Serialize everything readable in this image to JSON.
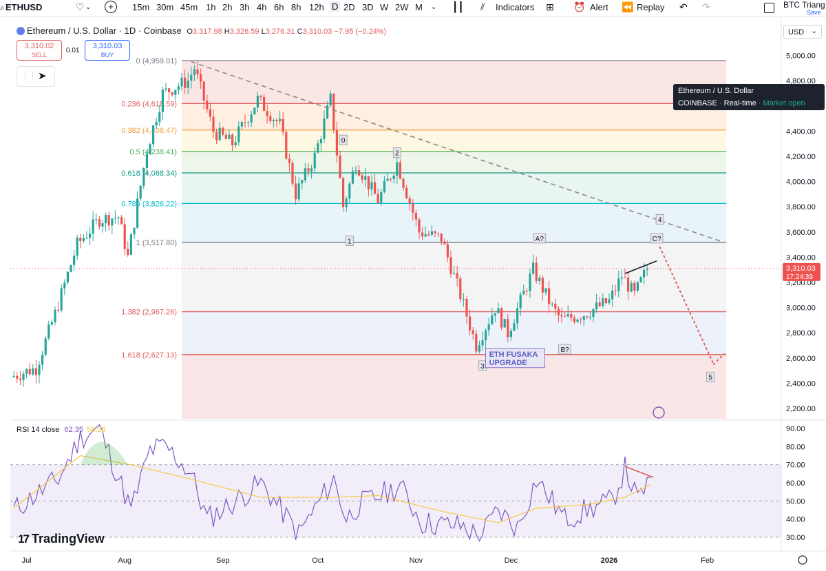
{
  "toolbar": {
    "symbol": "ETHUSD",
    "intervals": [
      "15m",
      "30m",
      "45m",
      "1h",
      "2h",
      "3h",
      "4h",
      "6h",
      "8h",
      "12h",
      "D",
      "2D",
      "3D",
      "W",
      "2W",
      "M"
    ],
    "selected_interval": "D",
    "indicators_label": "Indicators",
    "alert_label": "Alert",
    "replay_label": "Replay",
    "layout_name": "BTC Triang",
    "layout_save": "Save"
  },
  "legend": {
    "title": "Ethereum / U.S. Dollar · 1D · Coinbase",
    "o_label": "O",
    "o": "3,317.98",
    "h_label": "H",
    "h": "3,326.59",
    "l_label": "L",
    "l": "3,276.31",
    "c_label": "C",
    "c": "3,310.03",
    "change": "−7.95 (−0.24%)"
  },
  "trade": {
    "sell_price": "3,310.02",
    "sell_label": "SELL",
    "spread": "0.01",
    "buy_price": "3,310.03",
    "buy_label": "BUY"
  },
  "currency": "USD",
  "tooltip": {
    "line1": "Ethereum / U.S. Dollar",
    "exchange": "COINBASE",
    "feed": "Real-time",
    "status": "Market open"
  },
  "price_tag": {
    "price": "3,310.03",
    "countdown": "17:24:39"
  },
  "rsi_legend": {
    "label": "RSI 14 close",
    "rsi": "62.35",
    "ma": "58.88"
  },
  "brand": "TradingView",
  "chart_data": {
    "type": "candlestick",
    "symbol": "ETHUSD",
    "interval": "1D",
    "y_axis": {
      "min": 2100,
      "max": 5100,
      "ticks": [
        "5,000.00",
        "4,800.00",
        "4,600.00",
        "4,400.00",
        "4,200.00",
        "4,000.00",
        "3,800.00",
        "3,600.00",
        "3,400.00",
        "3,200.00",
        "3,000.00",
        "2,800.00",
        "2,600.00",
        "2,400.00",
        "2,200.00"
      ]
    },
    "x_axis": {
      "ticks": [
        "Jul",
        "Aug",
        "Sep",
        "Oct",
        "Nov",
        "Dec",
        "2026",
        "Feb"
      ]
    },
    "ohlc_samples": [
      {
        "date": "2025-06-27",
        "c": 2450
      },
      {
        "date": "2025-07-05",
        "c": 2520
      },
      {
        "date": "2025-07-11",
        "c": 2950
      },
      {
        "date": "2025-07-18",
        "c": 3500
      },
      {
        "date": "2025-07-25",
        "c": 3700
      },
      {
        "date": "2025-07-31",
        "c": 3720
      },
      {
        "date": "2025-08-03",
        "c": 3400
      },
      {
        "date": "2025-08-09",
        "c": 4250
      },
      {
        "date": "2025-08-14",
        "c": 4700
      },
      {
        "date": "2025-08-22",
        "c": 4800
      },
      {
        "date": "2025-08-24",
        "c": 4900
      },
      {
        "date": "2025-08-30",
        "c": 4400
      },
      {
        "date": "2025-09-05",
        "c": 4300
      },
      {
        "date": "2025-09-13",
        "c": 4650
      },
      {
        "date": "2025-09-20",
        "c": 4450
      },
      {
        "date": "2025-09-25",
        "c": 3900
      },
      {
        "date": "2025-10-01",
        "c": 4200
      },
      {
        "date": "2025-10-06",
        "c": 4650
      },
      {
        "date": "2025-10-10",
        "c": 3800
      },
      {
        "date": "2025-10-14",
        "c": 4150
      },
      {
        "date": "2025-10-21",
        "c": 3850
      },
      {
        "date": "2025-10-27",
        "c": 4150
      },
      {
        "date": "2025-11-03",
        "c": 3600
      },
      {
        "date": "2025-11-10",
        "c": 3550
      },
      {
        "date": "2025-11-16",
        "c": 3100
      },
      {
        "date": "2025-11-21",
        "c": 2700
      },
      {
        "date": "2025-11-27",
        "c": 3000
      },
      {
        "date": "2025-12-01",
        "c": 2800
      },
      {
        "date": "2025-12-09",
        "c": 3300
      },
      {
        "date": "2025-12-15",
        "c": 3000
      },
      {
        "date": "2025-12-18",
        "c": 2900
      },
      {
        "date": "2025-12-25",
        "c": 2950
      },
      {
        "date": "2026-01-02",
        "c": 3050
      },
      {
        "date": "2026-01-06",
        "c": 3250
      },
      {
        "date": "2026-01-10",
        "c": 3100
      },
      {
        "date": "2026-01-14",
        "c": 3310
      }
    ],
    "fibonacci": [
      {
        "ratio": "0",
        "price": 4959.01,
        "label": "0 (4,959.01)"
      },
      {
        "ratio": "0.236",
        "price": 4618.59,
        "label": "0.236 (4,618.59)"
      },
      {
        "ratio": "0.382",
        "price": 4408.47,
        "label": "0.382 (4,408.47)"
      },
      {
        "ratio": "0.5",
        "price": 4238.41,
        "label": "0.5 (4,238.41)"
      },
      {
        "ratio": "0.618",
        "price": 4068.34,
        "label": "0.618 (4,068.34)"
      },
      {
        "ratio": "0.786",
        "price": 3826.22,
        "label": "0.786 (3,826.22)"
      },
      {
        "ratio": "1",
        "price": 3517.8,
        "label": "1 (3,517.80)"
      },
      {
        "ratio": "1.382",
        "price": 2967.26,
        "label": "1.382 (2,967.26)"
      },
      {
        "ratio": "1.618",
        "price": 2627.13,
        "label": "1.618 (2,627.13)"
      }
    ],
    "wave_labels": [
      {
        "label": "0",
        "date": "2025-10-09",
        "price": 4330
      },
      {
        "label": "1",
        "date": "2025-10-11",
        "price": 3530
      },
      {
        "label": "2",
        "date": "2025-10-26",
        "price": 4230
      },
      {
        "label": "3",
        "date": "2025-11-22",
        "price": 2540
      },
      {
        "label": "A?",
        "date": "2025-12-10",
        "price": 3550
      },
      {
        "label": "B?",
        "date": "2025-12-18",
        "price": 2670
      },
      {
        "label": "C?",
        "date": "2026-01-16",
        "price": 3550
      },
      {
        "label": "4",
        "date": "2026-01-17",
        "price": 3700
      },
      {
        "label": "5",
        "date": "2026-02-02",
        "price": 2450
      }
    ],
    "annotations": [
      {
        "text_lines": [
          "ETH FUSAKA",
          "UPGRADE"
        ],
        "date": "2025-12-03",
        "price": 2600
      }
    ],
    "trendline": {
      "from": {
        "date": "2025-08-22",
        "price": 4950
      },
      "to": {
        "date": "2026-02-06",
        "price": 3520
      },
      "style": "dashed"
    },
    "projection": {
      "from": {
        "date": "2026-01-17",
        "price": 3480
      },
      "to": {
        "date": "2026-02-03",
        "price": 2550
      },
      "style": "dotted"
    },
    "rsi": {
      "period": 14,
      "y_ticks": [
        "90.00",
        "80.00",
        "70.00",
        "60.00",
        "50.00",
        "40.00",
        "30.00"
      ],
      "overbought": 70,
      "oversold": 30,
      "samples": [
        {
          "date": "2025-06-27",
          "v": 45
        },
        {
          "date": "2025-07-11",
          "v": 62
        },
        {
          "date": "2025-07-18",
          "v": 85
        },
        {
          "date": "2025-07-24",
          "v": 90
        },
        {
          "date": "2025-08-03",
          "v": 45
        },
        {
          "date": "2025-08-09",
          "v": 78
        },
        {
          "date": "2025-08-14",
          "v": 80
        },
        {
          "date": "2025-08-22",
          "v": 65
        },
        {
          "date": "2025-08-27",
          "v": 40
        },
        {
          "date": "2025-09-05",
          "v": 50
        },
        {
          "date": "2025-09-13",
          "v": 60
        },
        {
          "date": "2025-09-25",
          "v": 32
        },
        {
          "date": "2025-10-06",
          "v": 62
        },
        {
          "date": "2025-10-10",
          "v": 40
        },
        {
          "date": "2025-10-14",
          "v": 48
        },
        {
          "date": "2025-10-27",
          "v": 58
        },
        {
          "date": "2025-11-03",
          "v": 38
        },
        {
          "date": "2025-11-16",
          "v": 36
        },
        {
          "date": "2025-11-21",
          "v": 30
        },
        {
          "date": "2025-11-27",
          "v": 45
        },
        {
          "date": "2025-12-03",
          "v": 35
        },
        {
          "date": "2025-12-09",
          "v": 62
        },
        {
          "date": "2025-12-18",
          "v": 40
        },
        {
          "date": "2025-12-25",
          "v": 45
        },
        {
          "date": "2026-01-02",
          "v": 50
        },
        {
          "date": "2026-01-06",
          "v": 68
        },
        {
          "date": "2026-01-10",
          "v": 50
        },
        {
          "date": "2026-01-14",
          "v": 63
        }
      ],
      "ma_samples": [
        {
          "date": "2025-06-27",
          "v": 46
        },
        {
          "date": "2025-07-18",
          "v": 75
        },
        {
          "date": "2025-08-03",
          "v": 70
        },
        {
          "date": "2025-08-22",
          "v": 62
        },
        {
          "date": "2025-09-13",
          "v": 52
        },
        {
          "date": "2025-10-06",
          "v": 52
        },
        {
          "date": "2025-10-20",
          "v": 53
        },
        {
          "date": "2025-11-10",
          "v": 44
        },
        {
          "date": "2025-11-27",
          "v": 38
        },
        {
          "date": "2025-12-09",
          "v": 46
        },
        {
          "date": "2025-12-25",
          "v": 48
        },
        {
          "date": "2026-01-06",
          "v": 52
        },
        {
          "date": "2026-01-14",
          "v": 59
        }
      ]
    }
  }
}
